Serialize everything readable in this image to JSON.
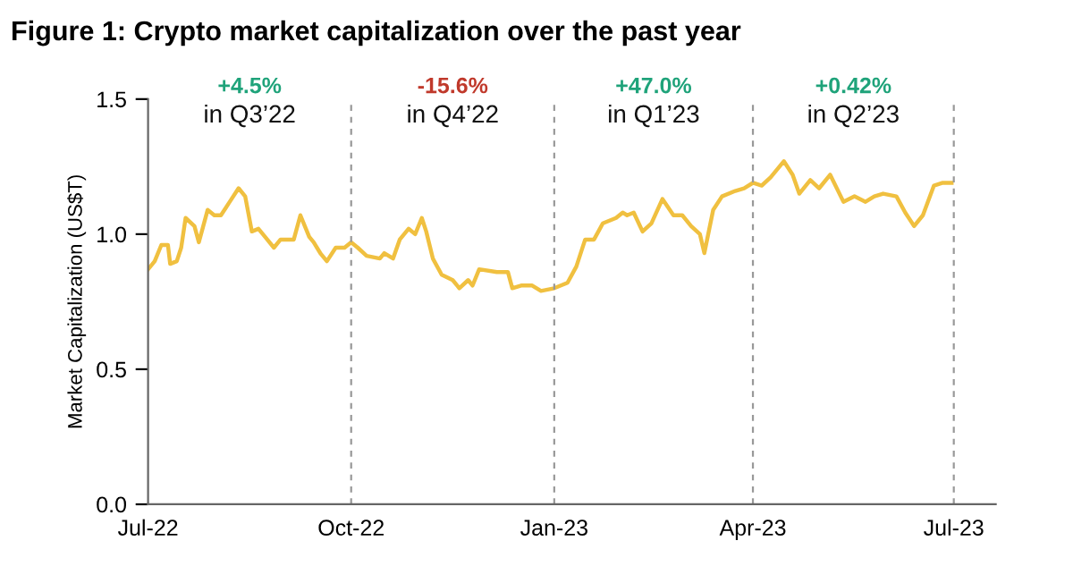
{
  "chart_data": {
    "type": "line",
    "title": "Figure 1: Crypto market capitalization over the past year",
    "ylabel": "Market Capitalization (US$T)",
    "x": [
      "2022-07-01",
      "2022-07-04",
      "2022-07-07",
      "2022-07-10",
      "2022-07-11",
      "2022-07-14",
      "2022-07-16",
      "2022-07-18",
      "2022-07-22",
      "2022-07-24",
      "2022-07-28",
      "2022-07-31",
      "2022-08-03",
      "2022-08-07",
      "2022-08-11",
      "2022-08-14",
      "2022-08-17",
      "2022-08-20",
      "2022-08-23",
      "2022-08-27",
      "2022-08-30",
      "2022-09-02",
      "2022-09-05",
      "2022-09-08",
      "2022-09-12",
      "2022-09-14",
      "2022-09-17",
      "2022-09-20",
      "2022-09-24",
      "2022-09-28",
      "2022-10-01",
      "2022-10-04",
      "2022-10-08",
      "2022-10-14",
      "2022-10-16",
      "2022-10-20",
      "2022-10-23",
      "2022-10-27",
      "2022-10-30",
      "2022-11-02",
      "2022-11-04",
      "2022-11-07",
      "2022-11-11",
      "2022-11-16",
      "2022-11-19",
      "2022-11-23",
      "2022-11-25",
      "2022-11-28",
      "2022-12-06",
      "2022-12-11",
      "2022-12-13",
      "2022-12-17",
      "2022-12-22",
      "2022-12-26",
      "2023-01-01",
      "2023-01-07",
      "2023-01-11",
      "2023-01-15",
      "2023-01-19",
      "2023-01-23",
      "2023-01-29",
      "2023-02-01",
      "2023-02-03",
      "2023-02-06",
      "2023-02-10",
      "2023-02-14",
      "2023-02-19",
      "2023-02-24",
      "2023-02-28",
      "2023-03-04",
      "2023-03-08",
      "2023-03-10",
      "2023-03-14",
      "2023-03-18",
      "2023-03-24",
      "2023-03-28",
      "2023-04-01",
      "2023-04-05",
      "2023-04-09",
      "2023-04-15",
      "2023-04-19",
      "2023-04-22",
      "2023-04-27",
      "2023-05-01",
      "2023-05-06",
      "2023-05-12",
      "2023-05-17",
      "2023-05-22",
      "2023-05-26",
      "2023-05-30",
      "2023-06-05",
      "2023-06-09",
      "2023-06-13",
      "2023-06-17",
      "2023-06-22",
      "2023-06-26",
      "2023-06-30"
    ],
    "series": [
      {
        "color": "#f0c040",
        "values": [
          0.87,
          0.9,
          0.96,
          0.96,
          0.89,
          0.9,
          0.95,
          1.06,
          1.03,
          0.97,
          1.09,
          1.07,
          1.07,
          1.12,
          1.17,
          1.14,
          1.01,
          1.02,
          0.99,
          0.95,
          0.98,
          0.98,
          0.98,
          1.07,
          0.99,
          0.97,
          0.93,
          0.9,
          0.95,
          0.95,
          0.97,
          0.95,
          0.92,
          0.91,
          0.93,
          0.91,
          0.98,
          1.02,
          1.0,
          1.06,
          1.01,
          0.91,
          0.85,
          0.83,
          0.8,
          0.83,
          0.81,
          0.87,
          0.86,
          0.86,
          0.8,
          0.81,
          0.81,
          0.79,
          0.8,
          0.82,
          0.88,
          0.98,
          0.98,
          1.04,
          1.06,
          1.08,
          1.07,
          1.08,
          1.01,
          1.04,
          1.13,
          1.07,
          1.07,
          1.03,
          1.0,
          0.93,
          1.09,
          1.14,
          1.16,
          1.17,
          1.19,
          1.18,
          1.21,
          1.27,
          1.22,
          1.15,
          1.2,
          1.17,
          1.22,
          1.12,
          1.14,
          1.12,
          1.14,
          1.15,
          1.14,
          1.08,
          1.03,
          1.07,
          1.18,
          1.19,
          1.19
        ]
      }
    ],
    "xlim": [
      "2022-07-01",
      "2023-07-20"
    ],
    "xticks": [
      {
        "value": "2022-07-01",
        "label": "Jul-22"
      },
      {
        "value": "2022-10-01",
        "label": "Oct-22"
      },
      {
        "value": "2023-01-01",
        "label": "Jan-23"
      },
      {
        "value": "2023-04-01",
        "label": "Apr-23"
      },
      {
        "value": "2023-07-01",
        "label": "Jul-23"
      }
    ],
    "ylim": [
      0,
      1.5
    ],
    "yticks": [
      {
        "value": 0,
        "label": "0.0"
      },
      {
        "value": 0.5,
        "label": "0.5"
      },
      {
        "value": 1.0,
        "label": "1.0"
      },
      {
        "value": 1.5,
        "label": "1.5"
      }
    ],
    "ref_lines": [
      {
        "axis": "x",
        "value": "2022-10-01",
        "color": "#999999",
        "line_style": "dashed"
      },
      {
        "axis": "x",
        "value": "2023-01-01",
        "color": "#999999",
        "line_style": "dashed"
      },
      {
        "axis": "x",
        "value": "2023-04-01",
        "color": "#999999",
        "line_style": "dashed"
      },
      {
        "axis": "x",
        "value": "2023-07-01",
        "color": "#999999",
        "line_style": "dashed"
      }
    ],
    "annotations": [
      "+4.5%",
      "in Q3’22",
      "-15.6%",
      "in Q4’22",
      "+47.0%",
      "in Q1’23",
      "+0.42%",
      "in Q2’23"
    ],
    "grid": false,
    "legend": false,
    "marker": "none",
    "line_style": "solid"
  }
}
